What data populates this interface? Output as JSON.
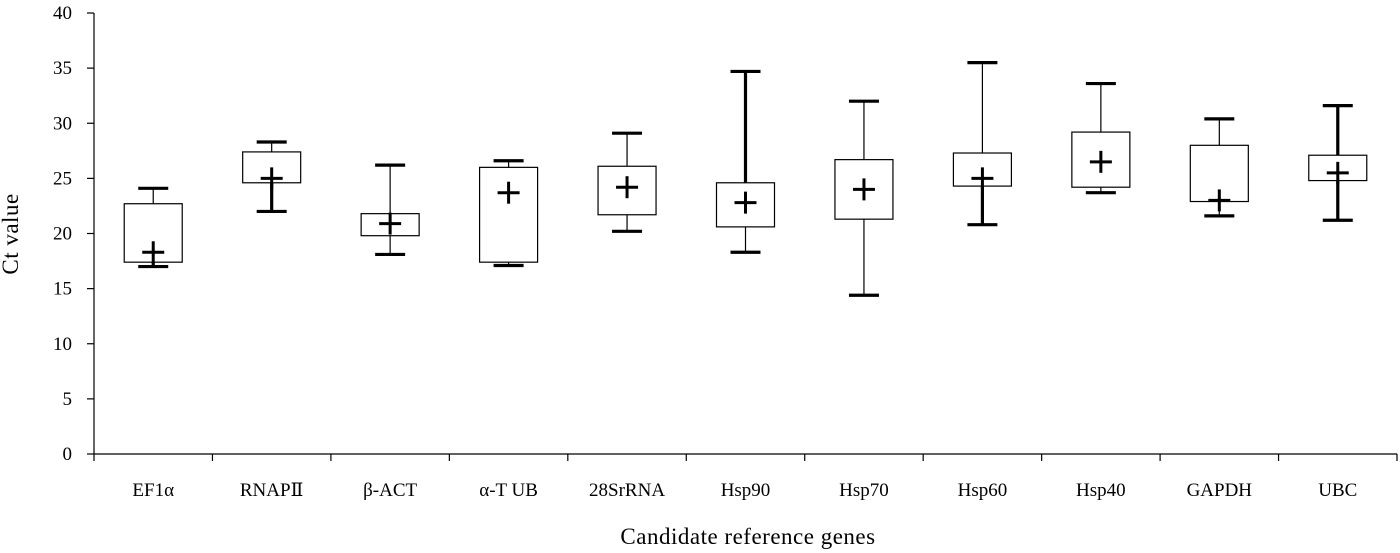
{
  "chart_data": {
    "type": "box",
    "title": "",
    "xlabel": "Candidate reference genes",
    "ylabel": "Ct value",
    "ylim": [
      0,
      40
    ],
    "yticks": [
      0,
      5,
      10,
      15,
      20,
      25,
      30,
      35,
      40
    ],
    "grid": false,
    "categories": [
      "EF1α",
      "RNAPⅡ",
      "β-ACT",
      "α-T UB",
      "28SrRNA",
      "Hsp90",
      "Hsp70",
      "Hsp60",
      "Hsp40",
      "GAPDH",
      "UBC"
    ],
    "series": [
      {
        "min": 17.0,
        "q1": 17.4,
        "q3": 22.7,
        "max": 24.1,
        "mean": 18.3
      },
      {
        "min": 22.0,
        "q1": 24.6,
        "q3": 27.4,
        "max": 28.3,
        "mean": 25.0
      },
      {
        "min": 18.1,
        "q1": 19.8,
        "q3": 21.8,
        "max": 26.2,
        "mean": 20.9
      },
      {
        "min": 17.1,
        "q1": 17.4,
        "q3": 26.0,
        "max": 26.6,
        "mean": 23.7
      },
      {
        "min": 20.2,
        "q1": 21.7,
        "q3": 26.1,
        "max": 29.1,
        "mean": 24.2
      },
      {
        "min": 18.3,
        "q1": 20.6,
        "q3": 24.6,
        "max": 34.7,
        "mean": 22.8
      },
      {
        "min": 14.4,
        "q1": 21.3,
        "q3": 26.7,
        "max": 32.0,
        "mean": 24.0
      },
      {
        "min": 20.8,
        "q1": 24.3,
        "q3": 27.3,
        "max": 35.5,
        "mean": 25.0
      },
      {
        "min": 23.7,
        "q1": 24.2,
        "q3": 29.2,
        "max": 33.6,
        "mean": 26.5
      },
      {
        "min": 21.6,
        "q1": 22.9,
        "q3": 28.0,
        "max": 30.4,
        "mean": 23.0
      },
      {
        "min": 21.2,
        "q1": 24.8,
        "q3": 27.1,
        "max": 31.6,
        "mean": 25.5
      }
    ],
    "whisker_style": [
      {
        "lower": "thick",
        "upper": "thin"
      },
      {
        "lower": "thick",
        "upper": "thin"
      },
      {
        "lower": "thin",
        "upper": "thin"
      },
      {
        "lower": "thin",
        "upper": "thin"
      },
      {
        "lower": "thin",
        "upper": "thin"
      },
      {
        "lower": "thin",
        "upper": "thick"
      },
      {
        "lower": "thin",
        "upper": "thin"
      },
      {
        "lower": "thick",
        "upper": "thin"
      },
      {
        "lower": "thin",
        "upper": "thin"
      },
      {
        "lower": "thin",
        "upper": "thin"
      },
      {
        "lower": "thick",
        "upper": "thick"
      }
    ]
  }
}
